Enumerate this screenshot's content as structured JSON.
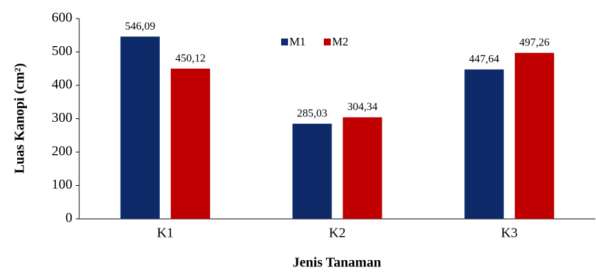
{
  "chart_data": {
    "type": "bar",
    "x_label": "Jenis Tanaman",
    "y_label": "Luas Kanopi (cm²)",
    "categories": [
      "K1",
      "K2",
      "K3"
    ],
    "series": [
      {
        "name": "M1",
        "color": "#0e2a68",
        "values": [
          546.09,
          285.03,
          447.64
        ],
        "value_labels": [
          "546,09",
          "285,03",
          "447,64"
        ]
      },
      {
        "name": "M2",
        "color": "#c00000",
        "values": [
          450.12,
          304.34,
          497.26
        ],
        "value_labels": [
          "450,12",
          "304,34",
          "497,26"
        ]
      }
    ],
    "ylim": [
      0,
      600
    ],
    "yticks": [
      0,
      100,
      200,
      300,
      400,
      500,
      600
    ],
    "grid": false,
    "legend": "top"
  }
}
